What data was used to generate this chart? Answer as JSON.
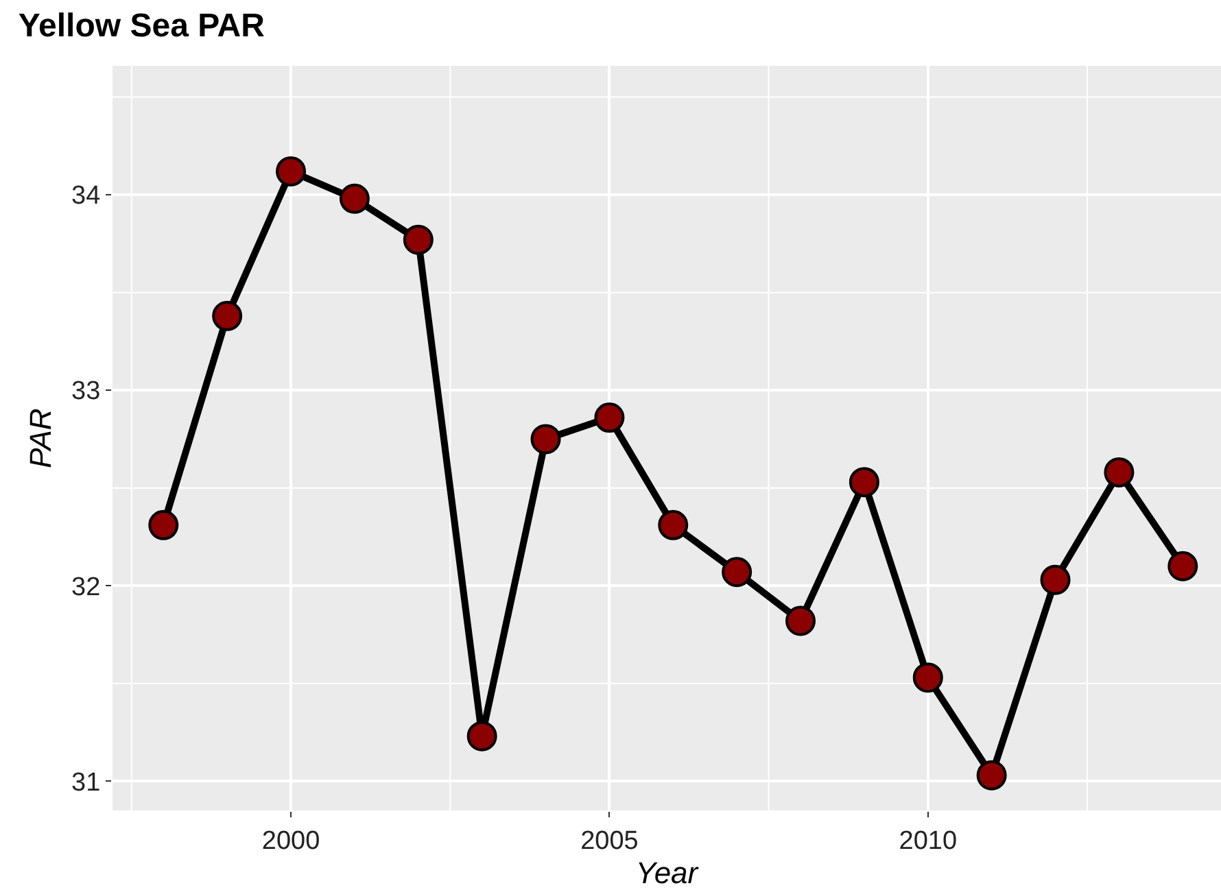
{
  "chart_data": {
    "type": "line",
    "title": "Yellow Sea PAR",
    "xlabel": "Year",
    "ylabel": "PAR",
    "x": [
      1998,
      1999,
      2000,
      2001,
      2002,
      2003,
      2004,
      2005,
      2006,
      2007,
      2008,
      2009,
      2010,
      2011,
      2012,
      2013,
      2014
    ],
    "series": [
      {
        "color": "#000000",
        "colors": [
          "#8b0000",
          "#8b0000",
          "#8b0000",
          "#8b0000",
          "#8b0000",
          "#8b0000",
          "#8b0000",
          "#8b0000",
          "#8b0000",
          "#8b0000",
          "#8b0000",
          "#8b0000",
          "#8b0000",
          "#8b0000",
          "#8b0000",
          "#8b0000",
          "#8b0000"
        ],
        "values": [
          32.31,
          33.38,
          34.12,
          33.98,
          33.77,
          31.23,
          32.75,
          32.86,
          32.31,
          32.07,
          31.82,
          32.53,
          31.53,
          31.03,
          32.03,
          32.58,
          32.1
        ]
      }
    ],
    "xlim": [
      1997.2,
      2014.6
    ],
    "ylim": [
      30.85,
      34.66
    ],
    "xticks": [
      2000,
      2005,
      2010
    ],
    "yticks": [
      31,
      32,
      33,
      34
    ],
    "grid": true,
    "marker": "circle",
    "line_style": "solid"
  }
}
